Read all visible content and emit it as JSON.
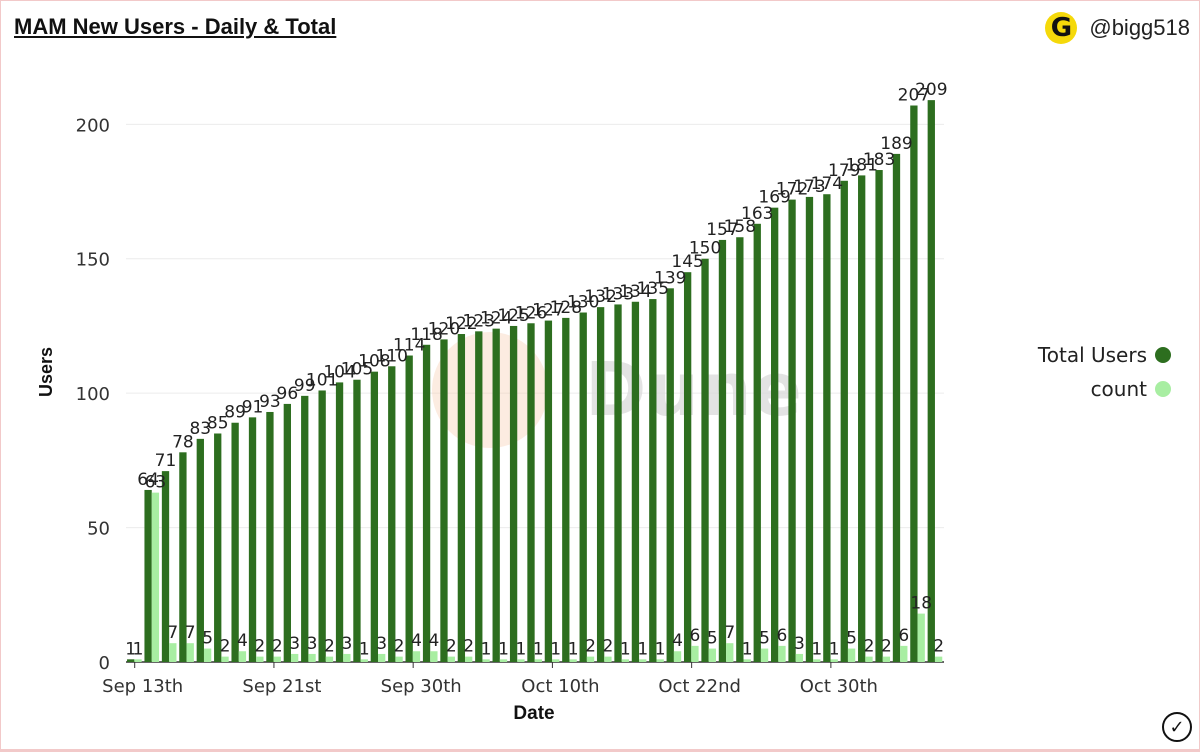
{
  "title": "MAM New Users - Daily & Total",
  "brand": {
    "logo_letter": "G",
    "handle": "@bigg518"
  },
  "watermark": "Dune",
  "chart_data": {
    "type": "bar",
    "xlabel": "Date",
    "ylabel": "Users",
    "ylim": [
      0,
      215
    ],
    "yticks": [
      0,
      50,
      100,
      150,
      200
    ],
    "x_tick_labels": [
      {
        "label": "Sep 13th",
        "index": 0
      },
      {
        "label": "Sep 21st",
        "index": 8
      },
      {
        "label": "Sep 30th",
        "index": 16
      },
      {
        "label": "Oct 10th",
        "index": 24
      },
      {
        "label": "Oct 22nd",
        "index": 32
      },
      {
        "label": "Oct 30th",
        "index": 40
      }
    ],
    "legend_position": "right",
    "grid": true,
    "colors": {
      "Total Users": "#2d6e1f",
      "count": "#a8eea2"
    },
    "series": [
      {
        "name": "Total Users",
        "values": [
          1,
          64,
          71,
          78,
          83,
          85,
          89,
          91,
          93,
          96,
          99,
          101,
          104,
          105,
          108,
          110,
          114,
          118,
          120,
          122,
          123,
          124,
          125,
          126,
          127,
          128,
          130,
          132,
          133,
          134,
          135,
          139,
          145,
          150,
          157,
          158,
          163,
          169,
          172,
          173,
          174,
          179,
          181,
          183,
          189,
          207,
          209
        ]
      },
      {
        "name": "count",
        "values": [
          1,
          63,
          7,
          7,
          5,
          2,
          4,
          2,
          2,
          3,
          3,
          2,
          3,
          1,
          3,
          2,
          4,
          4,
          2,
          2,
          1,
          1,
          1,
          1,
          1,
          1,
          2,
          2,
          1,
          1,
          1,
          4,
          6,
          5,
          7,
          1,
          5,
          6,
          3,
          1,
          1,
          5,
          2,
          2,
          6,
          18,
          2
        ]
      }
    ]
  }
}
